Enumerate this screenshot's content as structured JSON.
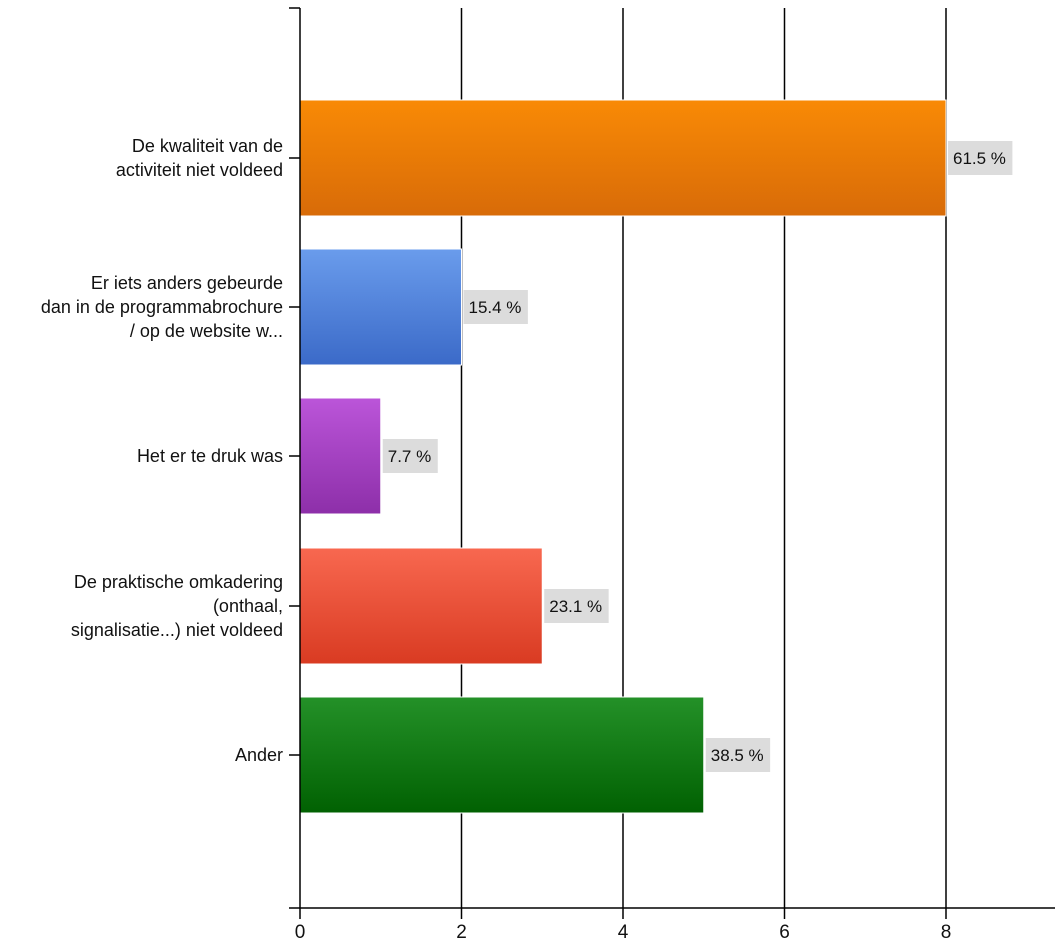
{
  "chart_data": {
    "type": "bar",
    "orientation": "horizontal",
    "categories": [
      [
        "De kwaliteit van de",
        "activiteit niet voldeed"
      ],
      [
        "Er iets anders gebeurde",
        "dan in de programmabrochure",
        "/ op de website w..."
      ],
      [
        "Het er te druk was"
      ],
      [
        "De praktische omkadering",
        "(onthaal,",
        "signalisatie...) niet voldeed"
      ],
      [
        "Ander"
      ]
    ],
    "values": [
      8,
      2,
      1,
      3,
      5
    ],
    "data_labels": [
      "61.5 %",
      "15.4 %",
      "7.7 %",
      "23.1 %",
      "38.5 %"
    ],
    "colors": [
      [
        "#f98a05",
        "#d86b08"
      ],
      [
        "#6a9cec",
        "#3b6ac8"
      ],
      [
        "#bb55d9",
        "#8d2fa9"
      ],
      [
        "#f86850",
        "#d93b22"
      ],
      [
        "#249128",
        "#016102"
      ]
    ],
    "xlim": [
      0,
      9
    ],
    "x_ticks": [
      "0",
      "2",
      "4",
      "6",
      "8"
    ],
    "grid": true
  }
}
